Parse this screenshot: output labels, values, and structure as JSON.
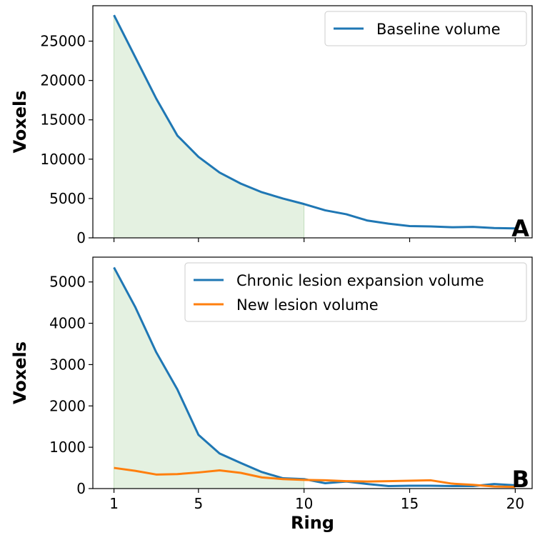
{
  "chart_data": [
    {
      "type": "line",
      "panel_label": "A",
      "xlabel": "",
      "ylabel": "Voxels",
      "xlim": [
        0.0,
        20.8
      ],
      "ylim": [
        0,
        29500
      ],
      "x_ticks": [
        1,
        5,
        10,
        15,
        20
      ],
      "y_ticks": [
        0,
        5000,
        10000,
        15000,
        20000,
        25000
      ],
      "shaded_range": [
        1,
        10
      ],
      "shade_color": "#e4f1e1",
      "legend_position": "upper-right",
      "x": [
        1,
        2,
        3,
        4,
        5,
        6,
        7,
        8,
        9,
        10,
        11,
        12,
        13,
        14,
        15,
        16,
        17,
        18,
        19,
        20
      ],
      "series": [
        {
          "name": "Baseline volume",
          "color": "#1f77b4",
          "values": [
            28300,
            23000,
            17700,
            13000,
            10300,
            8300,
            6900,
            5800,
            5000,
            4300,
            3500,
            3000,
            2200,
            1800,
            1500,
            1450,
            1350,
            1400,
            1250,
            1200
          ]
        }
      ]
    },
    {
      "type": "line",
      "panel_label": "B",
      "xlabel": "Ring",
      "ylabel": "Voxels",
      "xlim": [
        0.0,
        20.8
      ],
      "ylim": [
        0,
        5600
      ],
      "x_ticks": [
        1,
        5,
        10,
        15,
        20
      ],
      "y_ticks": [
        0,
        1000,
        2000,
        3000,
        4000,
        5000
      ],
      "shaded_range": [
        1,
        10
      ],
      "shade_color": "#e4f1e1",
      "legend_position": "upper-right",
      "x": [
        1,
        2,
        3,
        4,
        5,
        6,
        7,
        8,
        9,
        10,
        11,
        12,
        13,
        14,
        15,
        16,
        17,
        18,
        19,
        20
      ],
      "series": [
        {
          "name": "Chronic lesion expansion volume",
          "color": "#1f77b4",
          "values": [
            5350,
            4400,
            3300,
            2400,
            1300,
            850,
            620,
            400,
            250,
            230,
            130,
            170,
            110,
            60,
            70,
            70,
            60,
            60,
            110,
            80
          ]
        },
        {
          "name": "New lesion volume",
          "color": "#ff7f0e",
          "values": [
            500,
            430,
            340,
            350,
            390,
            440,
            380,
            270,
            230,
            210,
            200,
            180,
            170,
            180,
            190,
            200,
            120,
            90,
            50,
            40
          ]
        }
      ]
    }
  ]
}
